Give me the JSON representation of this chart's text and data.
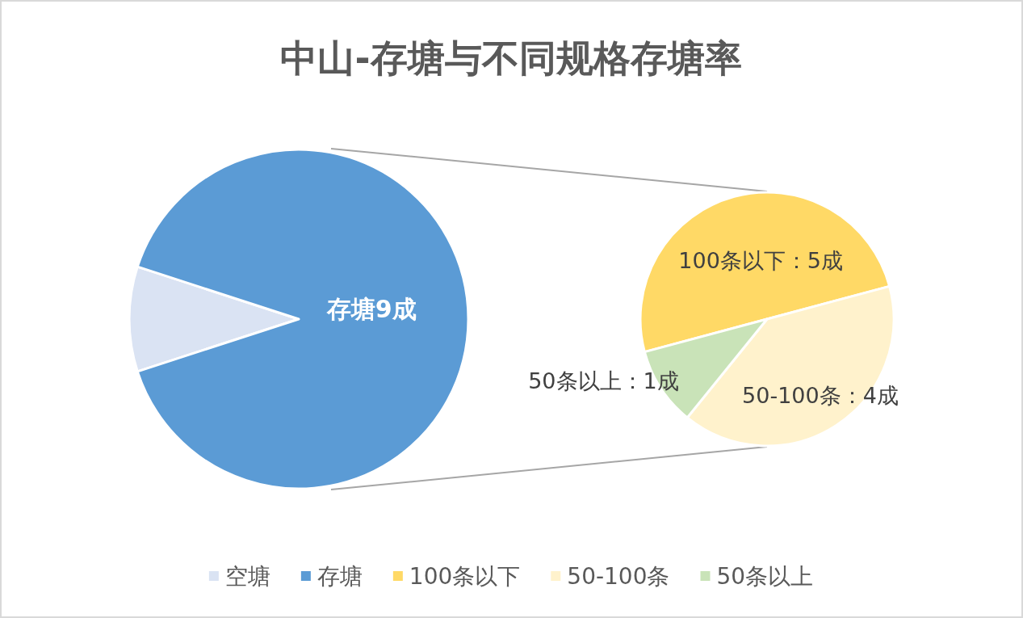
{
  "chart_data": [
    {
      "type": "pie",
      "title": "中山-存塘与不同规格存塘率",
      "categories": [
        "空塘",
        "存塘"
      ],
      "values": [
        1,
        9
      ],
      "colors": [
        "#dae3f3",
        "#5b9bd5"
      ],
      "value_labels": [
        null,
        "存塘9成"
      ],
      "legend": "bottom"
    },
    {
      "type": "pie",
      "categories": [
        "100条以下",
        "50-100条",
        "50条以上"
      ],
      "values": [
        5,
        4,
        1
      ],
      "colors": [
        "#ffd966",
        "#fff2cc",
        "#c9e3b8"
      ],
      "value_labels": [
        "100条以下：5成",
        "50-100条：4成",
        "50条以上：1成"
      ],
      "legend": "bottom"
    }
  ]
}
